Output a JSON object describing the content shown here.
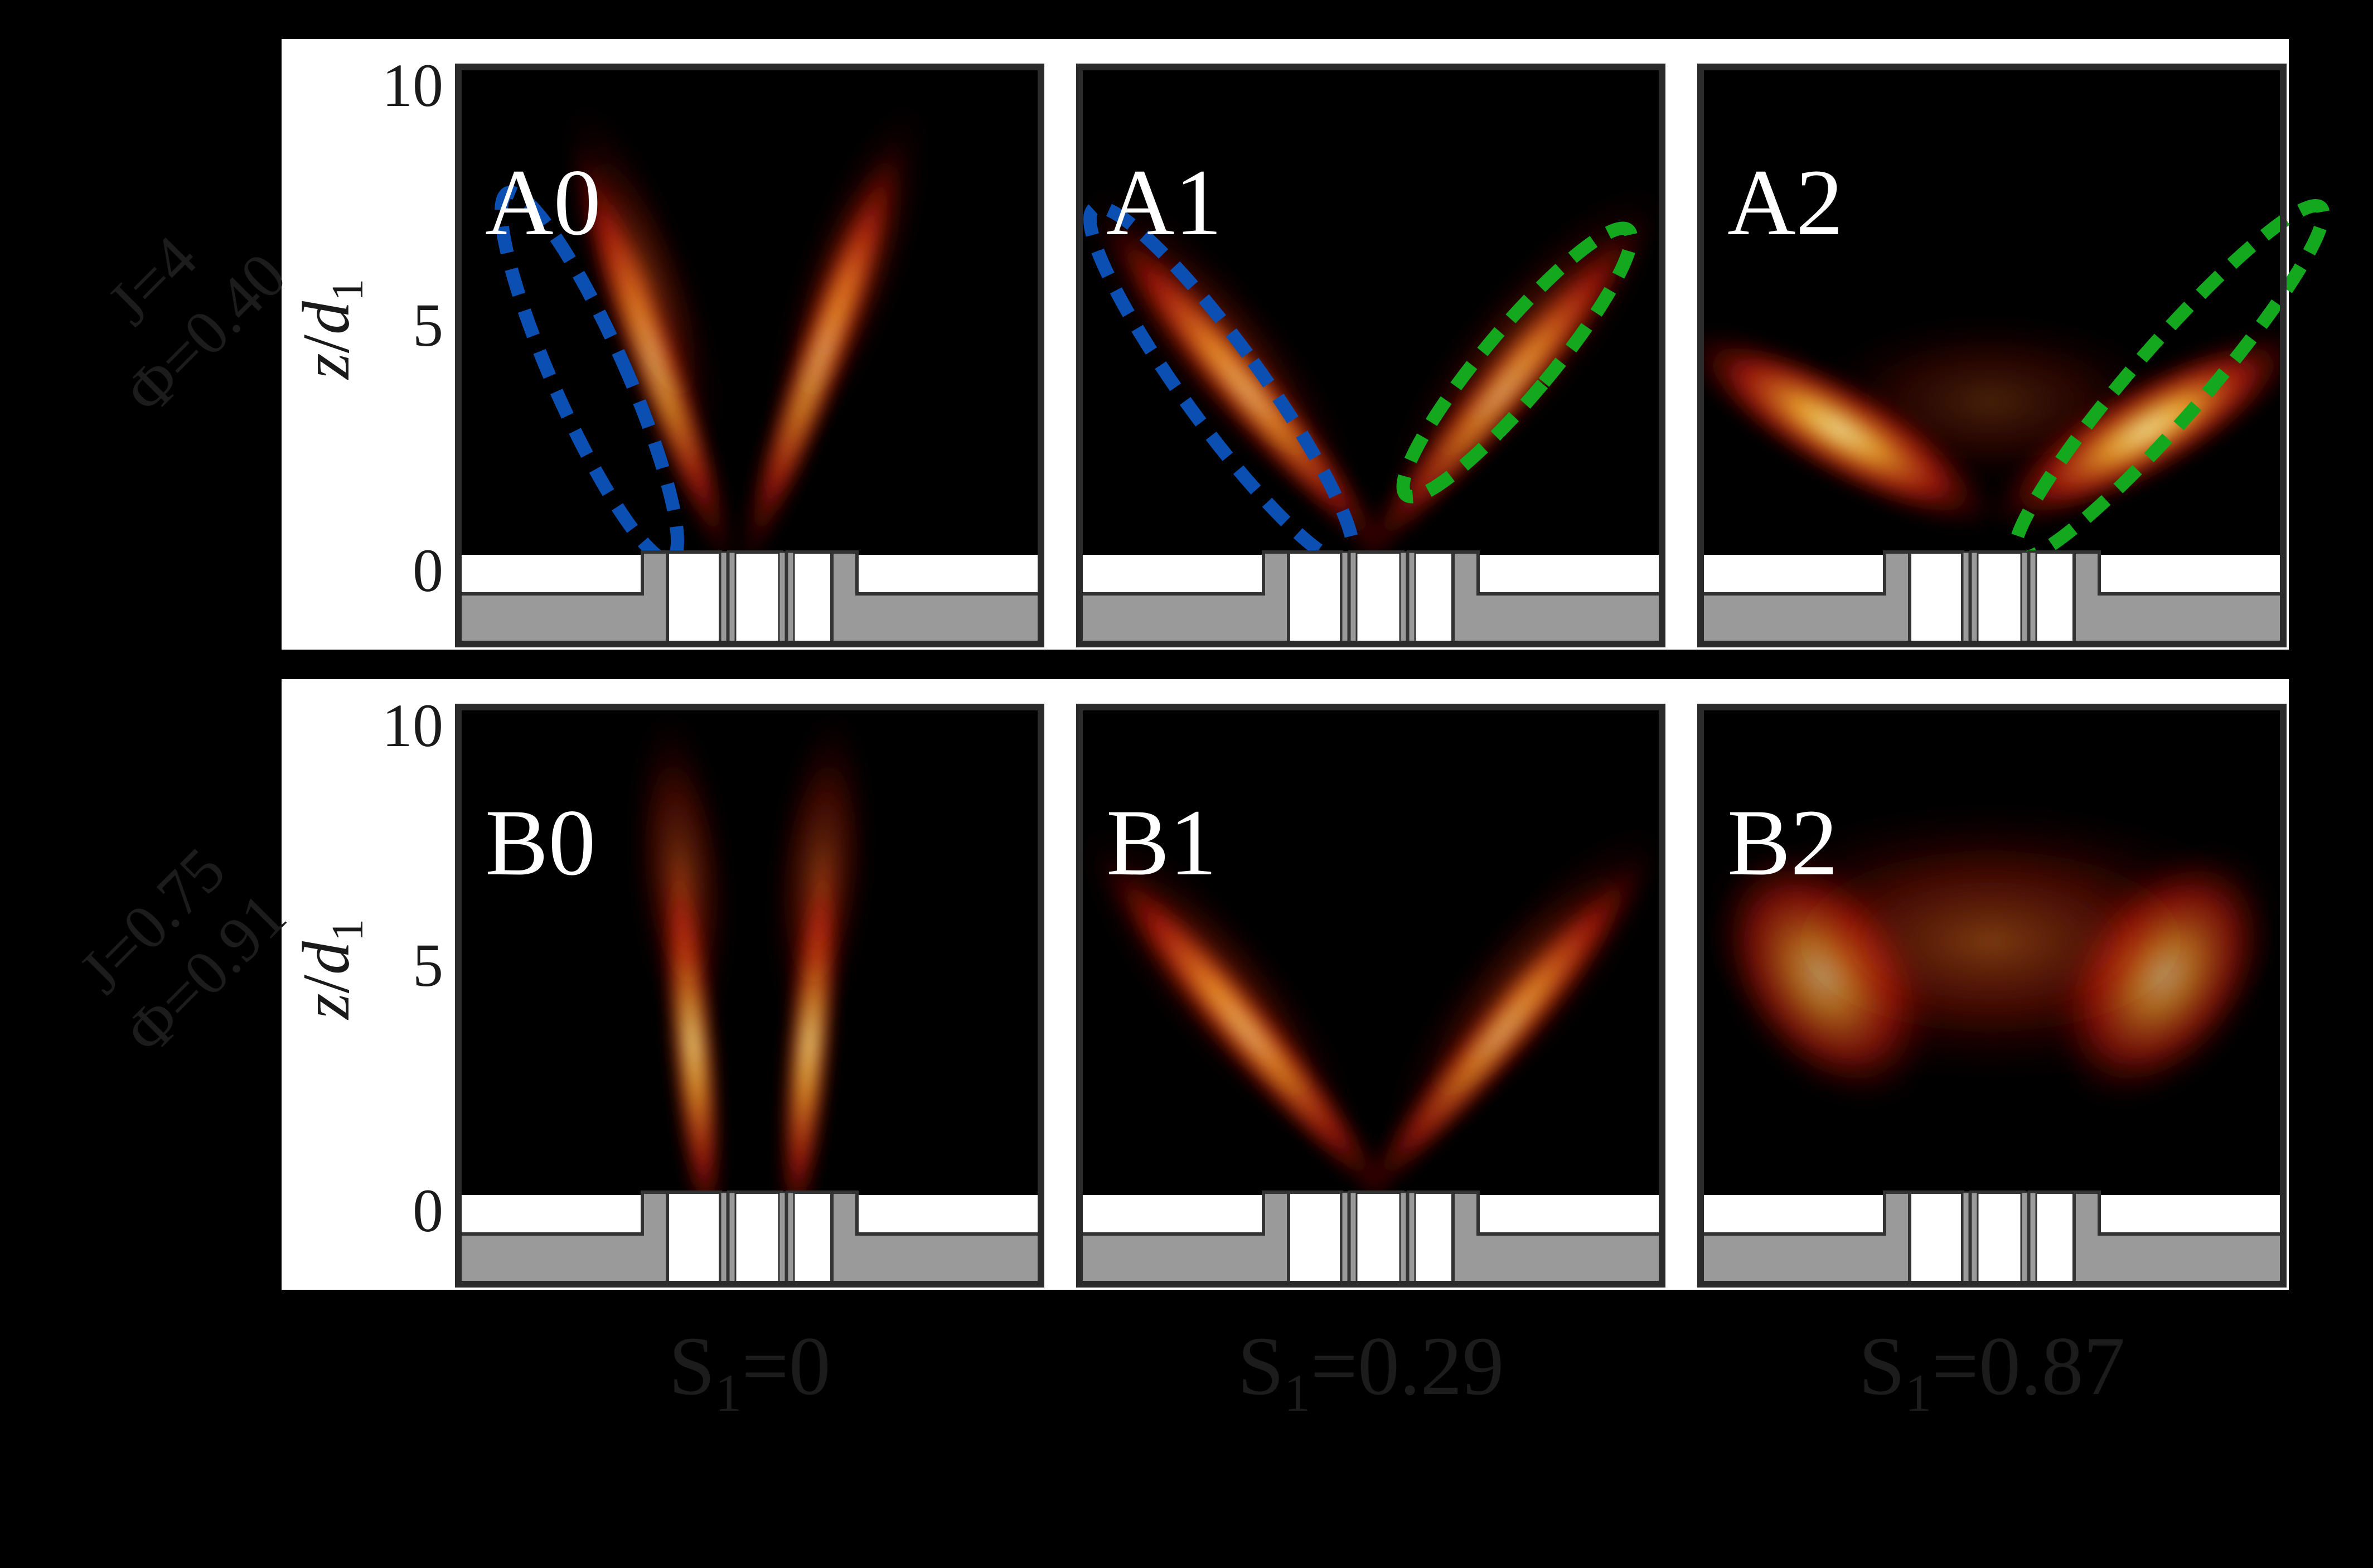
{
  "rows": [
    {
      "id": "A",
      "row_label_line1": "J=4",
      "row_label_line2": "Φ=0.40",
      "panels": [
        {
          "label": "A0",
          "plume": "narrow-v",
          "ellipses": [
            "blue-left"
          ]
        },
        {
          "label": "A1",
          "plume": "wide-v",
          "ellipses": [
            "blue-left",
            "green-right"
          ]
        },
        {
          "label": "A2",
          "plume": "flat-wings",
          "ellipses": [
            "green-right"
          ]
        }
      ]
    },
    {
      "id": "B",
      "row_label_line1": "J=0.75",
      "row_label_line2": "Φ=0.91",
      "panels": [
        {
          "label": "B0",
          "plume": "vertical"
        },
        {
          "label": "B1",
          "plume": "wide-v"
        },
        {
          "label": "B2",
          "plume": "broad-u"
        }
      ]
    }
  ],
  "y_axis": {
    "label_var": "z",
    "label_sep": "/",
    "label_den": "d",
    "label_den_sub": "1",
    "ticks": [
      "10",
      "5",
      "0"
    ]
  },
  "columns": [
    {
      "swirl_prefix": "S",
      "swirl_sub": "1",
      "swirl_value": "=0"
    },
    {
      "swirl_prefix": "S",
      "swirl_sub": "1",
      "swirl_value": "=0.29"
    },
    {
      "swirl_prefix": "S",
      "swirl_sub": "1",
      "swirl_value": "=0.87"
    }
  ],
  "colors": {
    "background": "#000000",
    "band": "#ffffff",
    "frame": "#2b2b2b",
    "burner_gray": "#9a9a9a",
    "ellipse_blue": "#0b4fb3",
    "ellipse_green": "#13a81e",
    "faint_label": "#1c1c1c"
  }
}
